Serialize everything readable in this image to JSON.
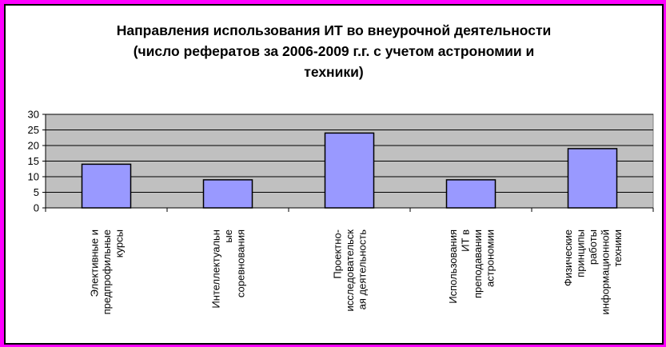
{
  "chart_data": {
    "type": "bar",
    "title_lines": [
      "Направления использования ИТ во внеурочной деятельности",
      "(число рефератов за 2006-2009 г.г. с учетом астрономии и",
      "техники)"
    ],
    "categories": [
      [
        "Элективные и",
        "предпрофильные",
        "курсы"
      ],
      [
        "Интеллектуальн",
        "ые",
        "соревнования"
      ],
      [
        "Проектно-",
        "исследовательск",
        "ая деятельность"
      ],
      [
        "Использования",
        "ИТ в",
        "преподавании",
        "астрономии"
      ],
      [
        "Физические",
        "принципы",
        "работы",
        "информационной",
        "техники"
      ]
    ],
    "values": [
      14,
      9,
      24,
      9,
      19
    ],
    "yticks": [
      0,
      5,
      10,
      15,
      20,
      25,
      30
    ],
    "ylim": [
      0,
      30
    ],
    "grid": true,
    "legend": "none",
    "colors": {
      "border": "#ff00ff",
      "plot_bg": "#c0c0c0",
      "bar_fill": "#9999ff",
      "bar_stroke": "#000000"
    }
  }
}
